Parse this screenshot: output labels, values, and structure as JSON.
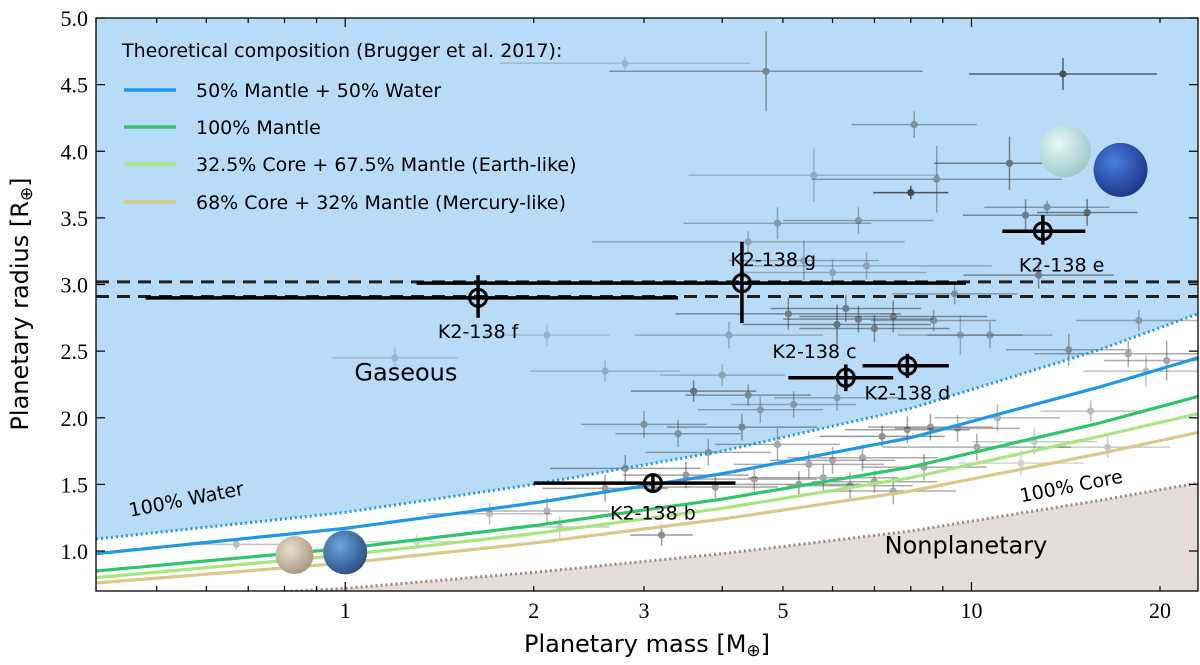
{
  "chart_data": {
    "type": "scatter",
    "title": "",
    "xlabel_main": "Planetary mass [M",
    "xlabel_unit": "]",
    "ylabel_main": "Planetary radius [R",
    "ylabel_unit": "]",
    "earth_symbol": "⊕",
    "x_scale": "log",
    "xlim": [
      0.4,
      23
    ],
    "ylim": [
      0.7,
      5.0
    ],
    "x_ticks": [
      {
        "value": 1,
        "label": "1"
      },
      {
        "value": 2,
        "label": "2"
      },
      {
        "value": 3,
        "label": "3"
      },
      {
        "value": 5,
        "label": "5"
      },
      {
        "value": 10,
        "label": "10"
      },
      {
        "value": 20,
        "label": "20"
      }
    ],
    "y_ticks": [
      {
        "value": 1.0,
        "label": "1.0"
      },
      {
        "value": 1.5,
        "label": "1.5"
      },
      {
        "value": 2.0,
        "label": "2.0"
      },
      {
        "value": 2.5,
        "label": "2.5"
      },
      {
        "value": 3.0,
        "label": "3.0"
      },
      {
        "value": 3.5,
        "label": "3.5"
      },
      {
        "value": 4.0,
        "label": "4.0"
      },
      {
        "value": 4.5,
        "label": "4.5"
      },
      {
        "value": 5.0,
        "label": "5.0"
      }
    ],
    "legend": {
      "title": "Theoretical composition (Brugger et al. 2017):",
      "placement": "top-left",
      "entries": [
        {
          "label": "50% Mantle + 50% Water",
          "color": "#1f98e8"
        },
        {
          "label": "100% Mantle",
          "color": "#2ec66a"
        },
        {
          "label": "32.5% Core + 67.5% Mantle (Earth-like)",
          "color": "#a8e67e"
        },
        {
          "label": "68% Core + 32% Mantle (Mercury-like)",
          "color": "#dcc887"
        }
      ]
    },
    "curves": [
      {
        "name": "100% Water",
        "style": "dotted",
        "color": "#1f98e8",
        "x": [
          0.4,
          1,
          2,
          4,
          8,
          16,
          23
        ],
        "y": [
          1.09,
          1.29,
          1.5,
          1.75,
          2.07,
          2.51,
          2.78
        ]
      },
      {
        "name": "50% Mantle + 50% Water",
        "style": "solid",
        "color": "#1f98e8",
        "x": [
          0.4,
          1,
          2,
          4,
          8,
          16,
          23
        ],
        "y": [
          0.98,
          1.17,
          1.36,
          1.58,
          1.85,
          2.23,
          2.45
        ]
      },
      {
        "name": "100% Mantle",
        "style": "solid",
        "color": "#2ec66a",
        "x": [
          0.4,
          1,
          2,
          4,
          8,
          16,
          23
        ],
        "y": [
          0.85,
          1.02,
          1.19,
          1.39,
          1.63,
          1.96,
          2.16
        ]
      },
      {
        "name": "32.5% Core + 67.5% Mantle (Earth-like)",
        "style": "solid",
        "color": "#a8e67e",
        "x": [
          0.4,
          1,
          2,
          4,
          8,
          16,
          23
        ],
        "y": [
          0.8,
          0.97,
          1.13,
          1.32,
          1.55,
          1.86,
          2.03
        ]
      },
      {
        "name": "68% Core + 32% Mantle (Mercury-like)",
        "style": "solid",
        "color": "#dcc887",
        "x": [
          0.4,
          1,
          2,
          4,
          8,
          16,
          23
        ],
        "y": [
          0.76,
          0.91,
          1.06,
          1.24,
          1.45,
          1.73,
          1.89
        ]
      },
      {
        "name": "100% Core",
        "style": "dotted",
        "color": "#9a8a80",
        "x": [
          0.4,
          1,
          2,
          4,
          8,
          16,
          23
        ],
        "y": [
          0.62,
          0.72,
          0.84,
          0.98,
          1.15,
          1.38,
          1.51
        ]
      }
    ],
    "regions": [
      {
        "name": "Gaseous",
        "color": "#b8dcf8"
      },
      {
        "name": "Nonplanetary",
        "color": "#e6dcd8"
      }
    ],
    "annotations": [
      {
        "text": "Gaseous",
        "x": 1.25,
        "y": 2.28,
        "size": 24
      },
      {
        "text": "Nonplanetary",
        "x": 9.8,
        "y": 0.98,
        "size": 24
      },
      {
        "text": "100% Water",
        "x": 0.56,
        "y": 1.34,
        "size": 19,
        "rotate": -11
      },
      {
        "text": "100% Core",
        "x": 14.5,
        "y": 1.44,
        "size": 19,
        "rotate": -11
      }
    ],
    "dashed_lines": [
      {
        "y": 2.91
      },
      {
        "y": 3.02
      }
    ],
    "k2_138": [
      {
        "name": "K2-138 b",
        "mass": 3.1,
        "mass_lo": 2.0,
        "mass_hi": 4.2,
        "radius": 1.51,
        "r_lo": 1.44,
        "r_hi": 1.58,
        "label_dx": 0.0,
        "label_dy": -0.22
      },
      {
        "name": "K2-138 c",
        "mass": 6.3,
        "mass_lo": 5.1,
        "mass_hi": 7.5,
        "radius": 2.3,
        "r_lo": 2.2,
        "r_hi": 2.4,
        "label_dx": -1.0,
        "label_dy": 0.2
      },
      {
        "name": "K2-138 d",
        "mass": 7.9,
        "mass_lo": 6.7,
        "mass_hi": 9.2,
        "radius": 2.39,
        "r_lo": 2.3,
        "r_hi": 2.48,
        "label_dx": 0.0,
        "label_dy": -0.2
      },
      {
        "name": "K2-138 e",
        "mass": 13.0,
        "mass_lo": 11.2,
        "mass_hi": 15.2,
        "radius": 3.4,
        "r_lo": 3.3,
        "r_hi": 3.52,
        "label_dx": 0.6,
        "label_dy": -0.25
      },
      {
        "name": "K2-138 f",
        "mass": 1.63,
        "mass_lo": 0.48,
        "mass_hi": 3.4,
        "radius": 2.9,
        "r_lo": 2.75,
        "r_hi": 3.07,
        "label_dx": 0.0,
        "label_dy": -0.25
      },
      {
        "name": "K2-138 g",
        "mass": 4.3,
        "mass_lo": 1.3,
        "mass_hi": 9.8,
        "radius": 3.01,
        "r_lo": 2.71,
        "r_hi": 3.32,
        "label_dx": 1.0,
        "label_dy": 0.18
      }
    ],
    "background_planets": [
      {
        "x": 14.0,
        "y": 4.58,
        "xe": 0.15,
        "ye": 0.12,
        "a": 0.75
      },
      {
        "x": 4.7,
        "y": 4.6,
        "xe": 0.25,
        "ye": 0.3,
        "a": 0.45
      },
      {
        "x": 2.8,
        "y": 4.66,
        "xe": 0.2,
        "ye": 0.05,
        "a": 0.2
      },
      {
        "x": 8.1,
        "y": 4.2,
        "xe": 0.1,
        "ye": 0.1,
        "a": 0.4
      },
      {
        "x": 11.5,
        "y": 3.91,
        "xe": 0.12,
        "ye": 0.2,
        "a": 0.55
      },
      {
        "x": 8.0,
        "y": 3.69,
        "xe": 0.06,
        "ye": 0.05,
        "a": 0.8
      },
      {
        "x": 8.8,
        "y": 3.79,
        "xe": 0.2,
        "ye": 0.25,
        "a": 0.4
      },
      {
        "x": 4.4,
        "y": 3.32,
        "xe": 0.25,
        "ye": 0.08,
        "a": 0.3
      },
      {
        "x": 4.9,
        "y": 3.46,
        "xe": 0.15,
        "ye": 0.12,
        "a": 0.35
      },
      {
        "x": 5.6,
        "y": 3.82,
        "xe": 0.2,
        "ye": 0.2,
        "a": 0.25
      },
      {
        "x": 12.2,
        "y": 3.52,
        "xe": 0.1,
        "ye": 0.12,
        "a": 0.5
      },
      {
        "x": 15.3,
        "y": 3.54,
        "xe": 0.08,
        "ye": 0.1,
        "a": 0.6
      },
      {
        "x": 13.2,
        "y": 3.58,
        "xe": 0.1,
        "ye": 0.05,
        "a": 0.4
      },
      {
        "x": 6.6,
        "y": 3.48,
        "xe": 0.12,
        "ye": 0.1,
        "a": 0.35
      },
      {
        "x": 5.4,
        "y": 3.18,
        "xe": 0.12,
        "ye": 0.15,
        "a": 0.35
      },
      {
        "x": 6.0,
        "y": 3.09,
        "xe": 0.15,
        "ye": 0.1,
        "a": 0.3
      },
      {
        "x": 6.8,
        "y": 3.14,
        "xe": 0.2,
        "ye": 0.1,
        "a": 0.3
      },
      {
        "x": 4.1,
        "y": 2.62,
        "xe": 0.15,
        "ye": 0.1,
        "a": 0.3
      },
      {
        "x": 5.1,
        "y": 2.78,
        "xe": 0.18,
        "ye": 0.12,
        "a": 0.5
      },
      {
        "x": 6.1,
        "y": 2.7,
        "xe": 0.15,
        "ye": 0.15,
        "a": 0.55
      },
      {
        "x": 6.3,
        "y": 2.82,
        "xe": 0.12,
        "ye": 0.1,
        "a": 0.5
      },
      {
        "x": 6.6,
        "y": 2.74,
        "xe": 0.12,
        "ye": 0.1,
        "a": 0.5
      },
      {
        "x": 7.0,
        "y": 2.67,
        "xe": 0.12,
        "ye": 0.1,
        "a": 0.5
      },
      {
        "x": 7.5,
        "y": 2.76,
        "xe": 0.15,
        "ye": 0.12,
        "a": 0.5
      },
      {
        "x": 8.7,
        "y": 2.73,
        "xe": 0.1,
        "ye": 0.08,
        "a": 0.4
      },
      {
        "x": 9.4,
        "y": 2.93,
        "xe": 0.1,
        "ye": 0.08,
        "a": 0.4
      },
      {
        "x": 12.8,
        "y": 3.07,
        "xe": 0.12,
        "ye": 0.1,
        "a": 0.5
      },
      {
        "x": 18.5,
        "y": 2.73,
        "xe": 0.1,
        "ye": 0.08,
        "a": 0.35
      },
      {
        "x": 17.8,
        "y": 2.48,
        "xe": 0.15,
        "ye": 0.1,
        "a": 0.4
      },
      {
        "x": 14.3,
        "y": 2.51,
        "xe": 0.1,
        "ye": 0.12,
        "a": 0.4
      },
      {
        "x": 20.5,
        "y": 2.43,
        "xe": 0.1,
        "ye": 0.15,
        "a": 0.4
      },
      {
        "x": 10.7,
        "y": 2.62,
        "xe": 0.1,
        "ye": 0.1,
        "a": 0.35
      },
      {
        "x": 3.6,
        "y": 2.2,
        "xe": 0.1,
        "ye": 0.08,
        "a": 0.55
      },
      {
        "x": 4.0,
        "y": 2.32,
        "xe": 0.1,
        "ye": 0.08,
        "a": 0.3
      },
      {
        "x": 4.4,
        "y": 2.17,
        "xe": 0.1,
        "ye": 0.08,
        "a": 0.45
      },
      {
        "x": 4.6,
        "y": 2.06,
        "xe": 0.1,
        "ye": 0.1,
        "a": 0.35
      },
      {
        "x": 5.2,
        "y": 2.1,
        "xe": 0.1,
        "ye": 0.1,
        "a": 0.35
      },
      {
        "x": 6.1,
        "y": 2.15,
        "xe": 0.1,
        "ye": 0.1,
        "a": 0.35
      },
      {
        "x": 3.0,
        "y": 1.95,
        "xe": 0.1,
        "ye": 0.1,
        "a": 0.4
      },
      {
        "x": 3.4,
        "y": 1.88,
        "xe": 0.1,
        "ye": 0.1,
        "a": 0.4
      },
      {
        "x": 3.8,
        "y": 1.74,
        "xe": 0.1,
        "ye": 0.1,
        "a": 0.4
      },
      {
        "x": 4.3,
        "y": 1.93,
        "xe": 0.12,
        "ye": 0.1,
        "a": 0.45
      },
      {
        "x": 4.9,
        "y": 1.8,
        "xe": 0.1,
        "ye": 0.12,
        "a": 0.4
      },
      {
        "x": 5.5,
        "y": 1.65,
        "xe": 0.12,
        "ye": 0.1,
        "a": 0.4
      },
      {
        "x": 6.0,
        "y": 1.68,
        "xe": 0.1,
        "ye": 0.1,
        "a": 0.4
      },
      {
        "x": 6.7,
        "y": 1.7,
        "xe": 0.12,
        "ye": 0.1,
        "a": 0.4
      },
      {
        "x": 7.2,
        "y": 1.86,
        "xe": 0.1,
        "ye": 0.08,
        "a": 0.5
      },
      {
        "x": 7.9,
        "y": 1.91,
        "xe": 0.1,
        "ye": 0.1,
        "a": 0.45
      },
      {
        "x": 8.6,
        "y": 1.93,
        "xe": 0.1,
        "ye": 0.1,
        "a": 0.45
      },
      {
        "x": 9.5,
        "y": 1.92,
        "xe": 0.1,
        "ye": 0.1,
        "a": 0.4
      },
      {
        "x": 11.0,
        "y": 2.0,
        "xe": 0.1,
        "ye": 0.1,
        "a": 0.35
      },
      {
        "x": 10.2,
        "y": 1.78,
        "xe": 0.15,
        "ye": 0.1,
        "a": 0.4
      },
      {
        "x": 12.6,
        "y": 1.82,
        "xe": 0.1,
        "ye": 0.1,
        "a": 0.25
      },
      {
        "x": 16.5,
        "y": 1.78,
        "xe": 0.1,
        "ye": 0.08,
        "a": 0.25
      },
      {
        "x": 2.8,
        "y": 1.62,
        "xe": 0.12,
        "ye": 0.1,
        "a": 0.45
      },
      {
        "x": 2.6,
        "y": 1.47,
        "xe": 0.1,
        "ye": 0.1,
        "a": 0.45
      },
      {
        "x": 3.5,
        "y": 1.57,
        "xe": 0.1,
        "ye": 0.1,
        "a": 0.45
      },
      {
        "x": 3.9,
        "y": 1.48,
        "xe": 0.1,
        "ye": 0.08,
        "a": 0.45
      },
      {
        "x": 4.5,
        "y": 1.54,
        "xe": 0.1,
        "ye": 0.1,
        "a": 0.4
      },
      {
        "x": 5.3,
        "y": 1.5,
        "xe": 0.1,
        "ye": 0.1,
        "a": 0.45
      },
      {
        "x": 5.8,
        "y": 1.55,
        "xe": 0.12,
        "ye": 0.1,
        "a": 0.4
      },
      {
        "x": 6.4,
        "y": 1.49,
        "xe": 0.1,
        "ye": 0.1,
        "a": 0.4
      },
      {
        "x": 7.0,
        "y": 1.52,
        "xe": 0.1,
        "ye": 0.08,
        "a": 0.4
      },
      {
        "x": 7.5,
        "y": 1.45,
        "xe": 0.1,
        "ye": 0.1,
        "a": 0.4
      },
      {
        "x": 8.4,
        "y": 1.63,
        "xe": 0.1,
        "ye": 0.1,
        "a": 0.4
      },
      {
        "x": 2.1,
        "y": 1.3,
        "xe": 0.1,
        "ye": 0.1,
        "a": 0.35
      },
      {
        "x": 1.7,
        "y": 1.28,
        "xe": 0.1,
        "ye": 0.08,
        "a": 0.3
      },
      {
        "x": 3.2,
        "y": 1.12,
        "xe": 0.05,
        "ye": 0.08,
        "a": 0.5
      },
      {
        "x": 2.2,
        "y": 1.18,
        "xe": 0.08,
        "ye": 0.08,
        "a": 0.25
      },
      {
        "x": 1.3,
        "y": 1.07,
        "xe": 0.08,
        "ye": 0.05,
        "a": 0.2
      },
      {
        "x": 0.67,
        "y": 1.05,
        "xe": 0.08,
        "ye": 0.04,
        "a": 0.3
      },
      {
        "x": 1.2,
        "y": 2.45,
        "xe": 0.1,
        "ye": 0.08,
        "a": 0.2
      },
      {
        "x": 2.6,
        "y": 2.35,
        "xe": 0.12,
        "ye": 0.08,
        "a": 0.25
      },
      {
        "x": 2.1,
        "y": 2.62,
        "xe": 0.1,
        "ye": 0.08,
        "a": 0.2
      },
      {
        "x": 9.6,
        "y": 2.62,
        "xe": 0.1,
        "ye": 0.15,
        "a": 0.3
      },
      {
        "x": 15.5,
        "y": 2.05,
        "xe": 0.08,
        "ye": 0.08,
        "a": 0.3
      },
      {
        "x": 19.0,
        "y": 2.35,
        "xe": 0.1,
        "ye": 0.12,
        "a": 0.3
      },
      {
        "x": 12.0,
        "y": 1.66,
        "xe": 0.1,
        "ye": 0.1,
        "a": 0.2
      }
    ],
    "planet_icons": [
      {
        "name": "mercury-icon",
        "x": 0.83,
        "y": 0.97,
        "r": 19,
        "c1": "#e8e0cc",
        "c2": "#a89680"
      },
      {
        "name": "earth-icon",
        "x": 1.0,
        "y": 0.99,
        "r": 22,
        "c1": "#6aa6de",
        "c2": "#2a4c80"
      },
      {
        "name": "uranus-icon",
        "x": 14.1,
        "y": 4.0,
        "r": 26,
        "c1": "#e6f8f8",
        "c2": "#9cc8c8"
      },
      {
        "name": "neptune-icon",
        "x": 17.3,
        "y": 3.86,
        "r": 27,
        "c1": "#4a7ee0",
        "c2": "#1a3488"
      }
    ]
  }
}
